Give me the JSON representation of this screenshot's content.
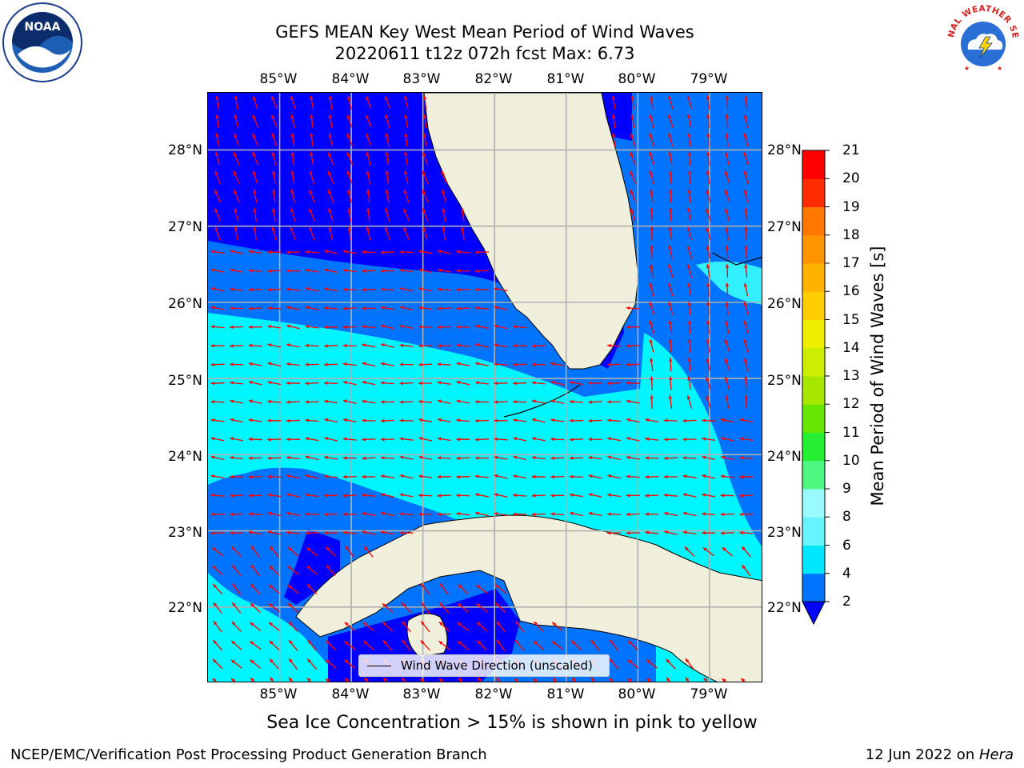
{
  "title": {
    "line1": "GEFS MEAN Key West Mean Period of Wind Waves",
    "line2": "20220611 t12z 072h fcst   Max: 6.73"
  },
  "map": {
    "lon_labels": [
      "85°W",
      "84°W",
      "83°W",
      "82°W",
      "81°W",
      "80°W",
      "79°W"
    ],
    "lat_labels": [
      "28°N",
      "27°N",
      "26°N",
      "25°N",
      "24°N",
      "23°N",
      "22°N"
    ],
    "lon_values": [
      -85,
      -84,
      -83,
      -82,
      -81,
      -80,
      -79
    ],
    "lat_values": [
      28,
      27,
      26,
      25,
      24,
      23,
      22
    ],
    "extent": {
      "lon_min": -86.0,
      "lon_max": -78.25,
      "lat_min": 21.0,
      "lat_max": 28.75
    },
    "grid": true,
    "land_color": "#efefdc",
    "arrow_color": "#ff0000",
    "legend_text": "Wind Wave Direction (unscaled)"
  },
  "colorbar": {
    "label": "Mean Period of Wind Waves [s]",
    "ticks": [
      "2",
      "4",
      "6",
      "8",
      "9",
      "10",
      "11",
      "12",
      "13",
      "14",
      "15",
      "16",
      "17",
      "18",
      "19",
      "20",
      "21"
    ],
    "colors": [
      "#0073ff",
      "#00e6ff",
      "#33f0ff",
      "#66f5ff",
      "#99faff",
      "#4df780",
      "#26ef33",
      "#00e600",
      "#66e600",
      "#a6e600",
      "#ccee00",
      "#eeee00",
      "#ffee00",
      "#ffcc00",
      "#ffb300",
      "#ff9400",
      "#ff7700",
      "#ff4e00",
      "#ff2b00",
      "#ff0000"
    ],
    "under_color": "#0000ff",
    "extend": "min"
  },
  "chart_data": {
    "type": "heatmap",
    "variable": "Mean Period of Wind Waves",
    "units": "s",
    "max": 6.73,
    "field_levels": {
      "dark_blue": "< 2",
      "medium_blue": "2–4",
      "cyan": "4–6",
      "light_cyan": "6–8"
    }
  },
  "footer": {
    "note": "Sea Ice Concentration > 15% is shown in pink to yellow",
    "credit_left": "NCEP/EMC/Verification Post Processing Product Generation Branch",
    "credit_date": "12 Jun 2022 on ",
    "credit_host": "Hera"
  },
  "logos": {
    "noaa_text": "NOAA",
    "nws_text": "NATIONAL WEATHER SERVICE",
    "noaa_icon": "noaa-logo",
    "nws_icon": "nws-logo"
  }
}
